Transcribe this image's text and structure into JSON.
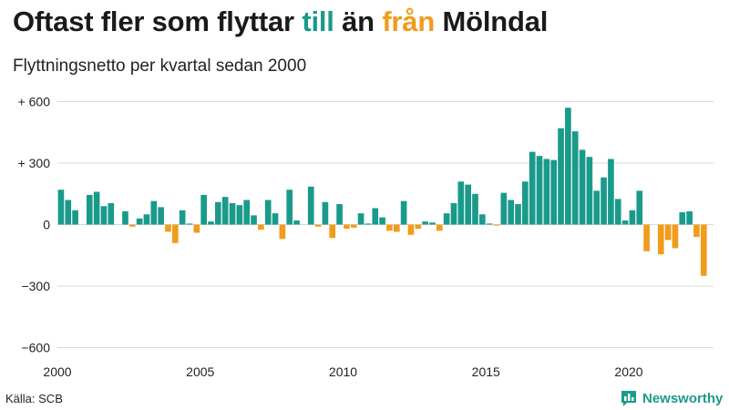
{
  "header": {
    "title_parts": [
      "Oftast fler som flyttar ",
      "till",
      " än ",
      "från",
      " Mölndal"
    ],
    "subtitle": "Flyttningsnetto per kvartal sedan 2000"
  },
  "footer": {
    "source": "Källa: SCB",
    "brand": "Newsworthy"
  },
  "colors": {
    "positive": "#1a9a8b",
    "negative": "#f19c1c",
    "brand": "#1a9a8b",
    "grid": "#d9d9d9"
  },
  "icons": {
    "brand_logo": "bar-chart-icon"
  },
  "chart_data": {
    "type": "bar",
    "title": "",
    "xlabel": "",
    "ylabel": "",
    "x_start": "2000 Q1",
    "x_ticks": [
      "2000",
      "2005",
      "2010",
      "2015",
      "2020"
    ],
    "y_ticks": [
      {
        "value": 600,
        "label": "+ 600"
      },
      {
        "value": 300,
        "label": "+ 300"
      },
      {
        "value": 0,
        "label": "0"
      },
      {
        "value": -300,
        "label": "−300"
      },
      {
        "value": -600,
        "label": "−600"
      }
    ],
    "ylim": [
      -600,
      600
    ],
    "grid": true,
    "values": [
      170,
      120,
      70,
      0,
      145,
      160,
      90,
      105,
      0,
      65,
      -10,
      30,
      50,
      115,
      85,
      -35,
      -90,
      70,
      5,
      -40,
      145,
      15,
      110,
      135,
      105,
      95,
      120,
      45,
      -25,
      120,
      55,
      -70,
      170,
      20,
      0,
      185,
      -10,
      110,
      -65,
      100,
      -20,
      -15,
      55,
      5,
      80,
      35,
      -30,
      -35,
      115,
      -50,
      -20,
      15,
      10,
      -30,
      55,
      105,
      210,
      195,
      150,
      50,
      5,
      -5,
      155,
      120,
      100,
      210,
      355,
      335,
      320,
      315,
      470,
      570,
      455,
      365,
      330,
      165,
      230,
      320,
      125,
      20,
      70,
      165,
      -130,
      0,
      -145,
      -75,
      -115,
      60,
      65,
      -60,
      -250
    ]
  }
}
